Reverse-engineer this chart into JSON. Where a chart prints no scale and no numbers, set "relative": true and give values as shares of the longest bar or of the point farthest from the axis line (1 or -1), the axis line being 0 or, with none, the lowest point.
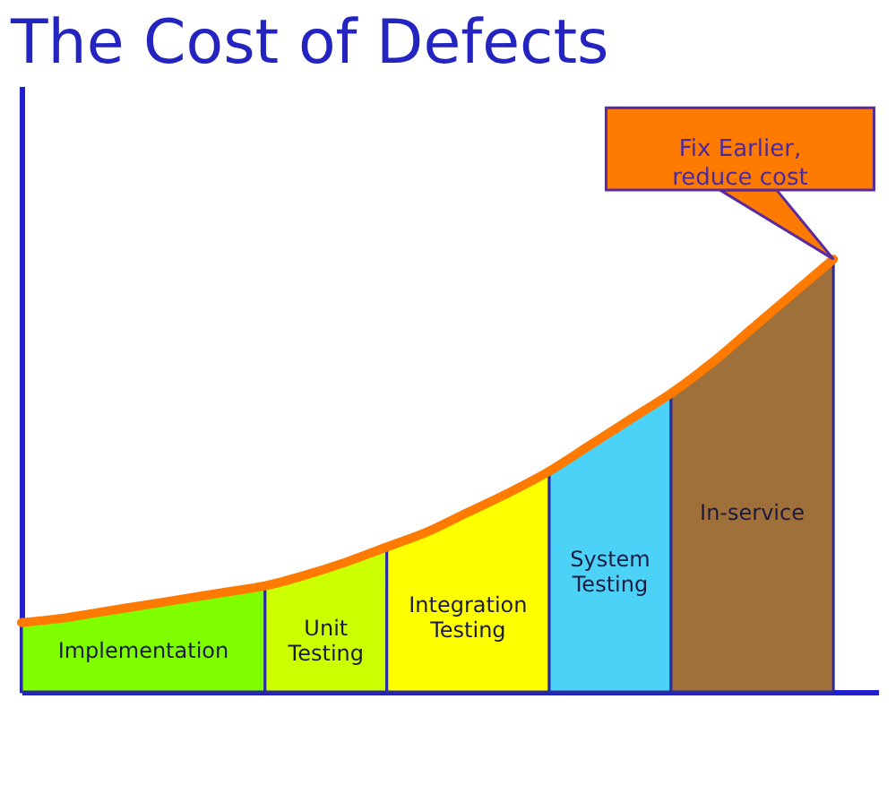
{
  "chart_data": {
    "type": "area",
    "title": "The Cost of Defects",
    "relative": true,
    "categories": [
      null,
      null,
      null,
      null,
      null,
      null,
      null,
      null,
      null,
      null,
      null,
      null,
      null,
      null,
      null,
      null,
      null,
      null,
      null,
      null,
      null
    ],
    "series": [
      {
        "name": "Implementation",
        "color": "#80ff00",
        "values": [
          0.16,
          0.17,
          0.185,
          0.2,
          0.215,
          0.23,
          0.245,
          null,
          null,
          null,
          null,
          null,
          null,
          null,
          null,
          null,
          null,
          null,
          null,
          null,
          null
        ]
      },
      {
        "name": "Unit Testing",
        "color": "#ccff00",
        "values": [
          null,
          null,
          null,
          null,
          null,
          null,
          0.245,
          0.27,
          0.3,
          0.335,
          null,
          null,
          null,
          null,
          null,
          null,
          null,
          null,
          null,
          null,
          null
        ]
      },
      {
        "name": "Integration Testing",
        "color": "#ffff00",
        "values": [
          null,
          null,
          null,
          null,
          null,
          null,
          null,
          null,
          null,
          0.335,
          0.37,
          0.415,
          0.46,
          0.51,
          null,
          null,
          null,
          null,
          null,
          null,
          null
        ]
      },
      {
        "name": "System Testing",
        "color": "#4dd2f7",
        "values": [
          null,
          null,
          null,
          null,
          null,
          null,
          null,
          null,
          null,
          null,
          null,
          null,
          null,
          0.51,
          0.57,
          0.63,
          0.69,
          null,
          null,
          null,
          null
        ]
      },
      {
        "name": "In-service",
        "color": "#a0703a",
        "values": [
          null,
          null,
          null,
          null,
          null,
          null,
          null,
          null,
          null,
          null,
          null,
          null,
          null,
          null,
          null,
          null,
          0.69,
          0.76,
          0.84,
          0.92,
          1.0
        ]
      },
      {
        "type": "line",
        "color": "#ff7a00",
        "values": [
          0.16,
          0.17,
          0.185,
          0.2,
          0.215,
          0.23,
          0.245,
          0.27,
          0.3,
          0.335,
          0.37,
          0.415,
          0.46,
          0.51,
          0.57,
          0.63,
          0.69,
          0.76,
          0.84,
          0.92,
          1.0
        ]
      }
    ],
    "annotations": [
      "Fix Earlier, reduce cost"
    ]
  }
}
